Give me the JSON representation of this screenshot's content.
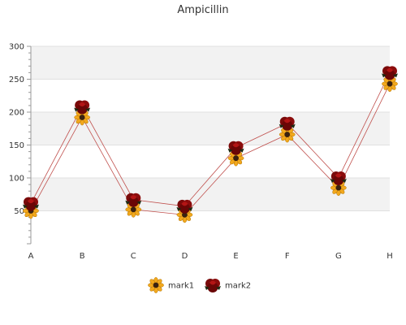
{
  "chart_data": {
    "type": "line",
    "title": "Ampicillin",
    "xlabel": "",
    "ylabel": "",
    "categories": [
      "A",
      "B",
      "C",
      "D",
      "E",
      "F",
      "G",
      "H"
    ],
    "series": [
      {
        "name": "mark1",
        "values": [
          50,
          192,
          52,
          44,
          130,
          166,
          85,
          243
        ],
        "color": "#c0504d",
        "marker": "sunflower-icon"
      },
      {
        "name": "mark2",
        "values": [
          61,
          208,
          67,
          57,
          146,
          183,
          100,
          260
        ],
        "color": "#c0504d",
        "marker": "rose-icon"
      }
    ],
    "ylim": [
      0,
      300
    ],
    "yticks": [
      50,
      100,
      150,
      200,
      250,
      300
    ],
    "grid": true,
    "legend": "bottom-center"
  }
}
